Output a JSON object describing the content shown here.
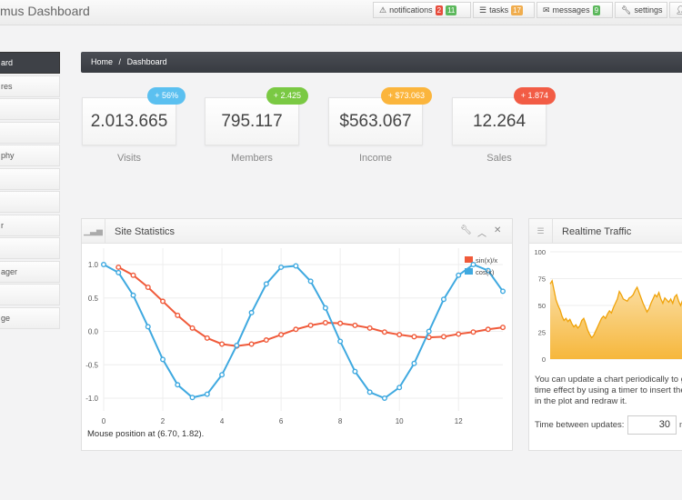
{
  "header": {
    "title": "mus Dashboard",
    "buttons": [
      {
        "icon": "warning-icon",
        "label": "notifications",
        "badges": [
          {
            "text": "2",
            "color": "#e74c3c"
          },
          {
            "text": "11",
            "color": "#5cb85c"
          }
        ]
      },
      {
        "icon": "list-icon",
        "label": "tasks",
        "badges": [
          {
            "text": "17",
            "color": "#f0ad4e"
          }
        ]
      },
      {
        "icon": "envelope-icon",
        "label": "messages",
        "badges": [
          {
            "text": "9",
            "color": "#5cb85c"
          }
        ]
      },
      {
        "icon": "wrench-icon",
        "label": "settings",
        "badges": []
      }
    ]
  },
  "sidebar": {
    "items": [
      "ard",
      "res",
      "",
      "",
      "phy",
      "",
      "",
      "r",
      "",
      "ager",
      "",
      "ge"
    ]
  },
  "breadcrumb": {
    "home": "Home",
    "sep": "/",
    "current": "Dashboard"
  },
  "stats": [
    {
      "value": "2.013.665",
      "label": "Visits",
      "badge": "+ 56%",
      "color": "#5bc0f0"
    },
    {
      "value": "795.117",
      "label": "Members",
      "badge": "+ 2.425",
      "color": "#7ac943"
    },
    {
      "value": "$563.067",
      "label": "Income",
      "badge": "+ $73.063",
      "color": "#fbb53c"
    },
    {
      "value": "12.264",
      "label": "Sales",
      "badge": "+ 1.874",
      "color": "#f25c45"
    }
  ],
  "site_stats": {
    "title": "Site Statistics",
    "mouse_text": "Mouse position at (6.70, 1.82)."
  },
  "realtime": {
    "title": "Realtime Traffic",
    "note": "You can update a chart periodically to g time effect by using a timer to insert the in the plot and redraw it.",
    "update_label": "Time between updates:",
    "update_value": "30",
    "unit": "m"
  },
  "chart_data": [
    {
      "type": "line",
      "title": "Site Statistics",
      "xlim": [
        0,
        13.5
      ],
      "ylim": [
        -1.2,
        1.2
      ],
      "xticks": [
        "0",
        "2",
        "4",
        "6",
        "8",
        "10",
        "12"
      ],
      "yticks": [
        "1.0",
        "0.5",
        "0.0",
        "-0.5",
        "-1.0"
      ],
      "legend": "top-right",
      "series": [
        {
          "name": "sin(x)/x",
          "color": "#f05a3a",
          "x": [
            0.5,
            1,
            1.5,
            2,
            2.5,
            3,
            3.5,
            4,
            4.5,
            5,
            5.5,
            6,
            6.5,
            7,
            7.5,
            8,
            8.5,
            9,
            9.5,
            10,
            10.5,
            11,
            11.5,
            12,
            12.5,
            13,
            13.5
          ],
          "y": [
            0.96,
            0.84,
            0.66,
            0.45,
            0.24,
            0.05,
            -0.1,
            -0.19,
            -0.22,
            -0.19,
            -0.13,
            -0.05,
            0.03,
            0.09,
            0.13,
            0.12,
            0.09,
            0.05,
            -0.01,
            -0.05,
            -0.08,
            -0.09,
            -0.08,
            -0.04,
            -0.01,
            0.03,
            0.06
          ]
        },
        {
          "name": "cos(x)",
          "color": "#3fa9e0",
          "x": [
            0,
            0.5,
            1,
            1.5,
            2,
            2.5,
            3,
            3.5,
            4,
            4.5,
            5,
            5.5,
            6,
            6.5,
            7,
            7.5,
            8,
            8.5,
            9,
            9.5,
            10,
            10.5,
            11,
            11.5,
            12,
            12.5,
            13,
            13.5
          ],
          "y": [
            1,
            0.88,
            0.54,
            0.07,
            -0.42,
            -0.8,
            -0.99,
            -0.94,
            -0.65,
            -0.21,
            0.28,
            0.71,
            0.96,
            0.98,
            0.75,
            0.35,
            -0.15,
            -0.6,
            -0.91,
            -1.0,
            -0.84,
            -0.48,
            0.0,
            0.48,
            0.84,
            1.0,
            0.91,
            0.6
          ]
        }
      ]
    },
    {
      "type": "area",
      "title": "Realtime Traffic",
      "ylim": [
        0,
        100
      ],
      "yticks": [
        "100",
        "75",
        "50",
        "25",
        "0"
      ],
      "color": "#f0a30a",
      "values": [
        70,
        73,
        64,
        55,
        50,
        46,
        40,
        36,
        38,
        35,
        37,
        33,
        30,
        32,
        29,
        31,
        36,
        38,
        33,
        27,
        23,
        20,
        22,
        26,
        30,
        34,
        38,
        40,
        38,
        42,
        45,
        43,
        48,
        52,
        56,
        63,
        60,
        56,
        55,
        54,
        57,
        58,
        60,
        64,
        67,
        62,
        57,
        52,
        48,
        44,
        47,
        52,
        56,
        60,
        58,
        62,
        56,
        52,
        57,
        55,
        53,
        56,
        52,
        58,
        60,
        54,
        50,
        55,
        52,
        48
      ]
    }
  ]
}
